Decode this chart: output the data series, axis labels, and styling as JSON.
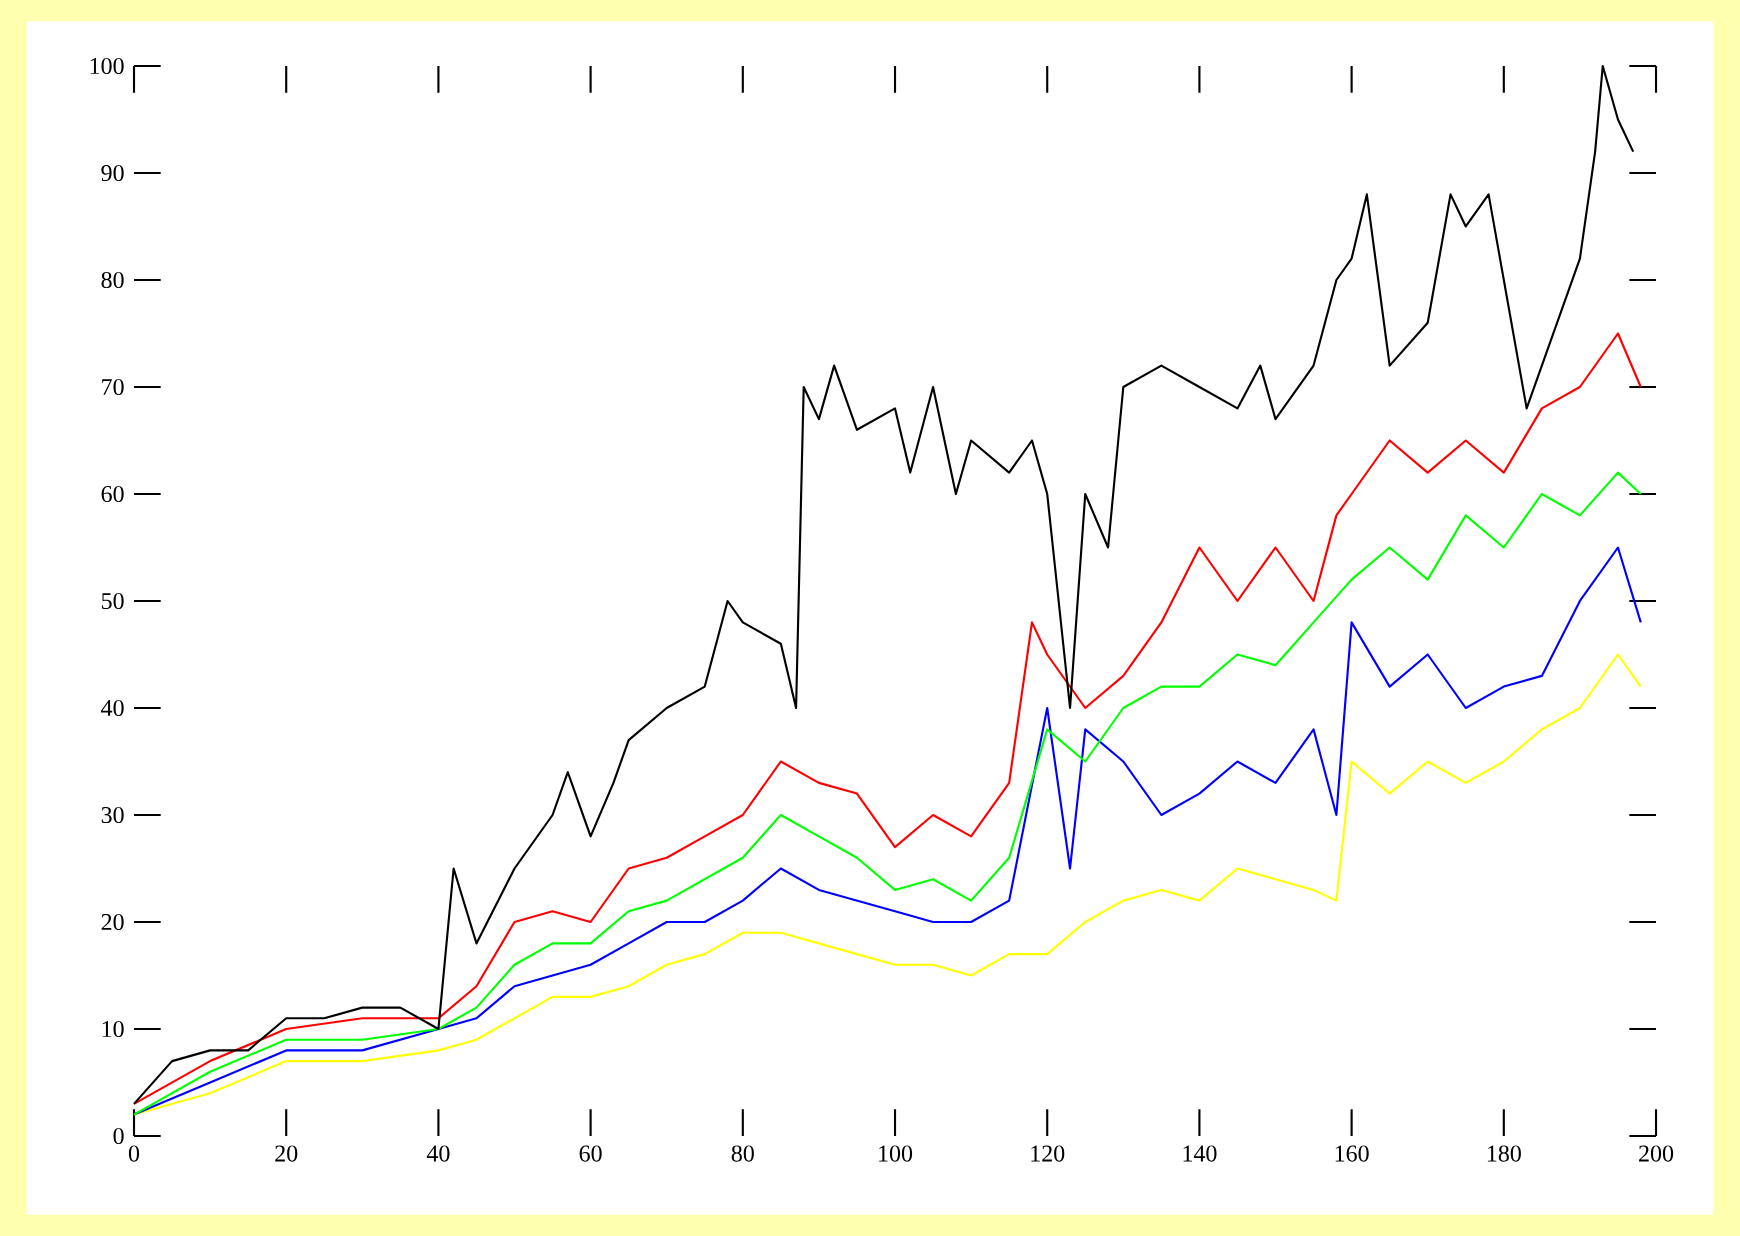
{
  "chart_data": {
    "type": "line",
    "xlim": [
      0,
      200
    ],
    "ylim": [
      0,
      100
    ],
    "xticks": [
      0,
      20,
      40,
      60,
      80,
      100,
      120,
      140,
      160,
      180,
      200
    ],
    "yticks": [
      0,
      10,
      20,
      30,
      40,
      50,
      60,
      70,
      80,
      90,
      100
    ],
    "grid": false,
    "marker": "none",
    "line_style": "solid",
    "series": [
      {
        "color": "#ffff00",
        "x": [
          0,
          10,
          20,
          30,
          40,
          45,
          50,
          55,
          60,
          65,
          70,
          75,
          80,
          85,
          90,
          95,
          100,
          105,
          110,
          115,
          120,
          125,
          130,
          135,
          140,
          145,
          150,
          155,
          158,
          160,
          165,
          170,
          175,
          180,
          185,
          190,
          195,
          198
        ],
        "values": [
          2,
          4,
          7,
          7,
          8,
          9,
          11,
          13,
          13,
          14,
          16,
          17,
          19,
          19,
          18,
          17,
          16,
          16,
          15,
          17,
          17,
          20,
          22,
          23,
          22,
          25,
          24,
          23,
          22,
          35,
          32,
          35,
          33,
          35,
          38,
          40,
          45,
          42
        ]
      },
      {
        "color": "#0000ff",
        "x": [
          0,
          10,
          20,
          30,
          40,
          45,
          50,
          55,
          60,
          65,
          70,
          75,
          80,
          85,
          90,
          95,
          100,
          105,
          110,
          115,
          120,
          123,
          125,
          130,
          135,
          140,
          145,
          150,
          155,
          158,
          160,
          165,
          170,
          175,
          180,
          185,
          190,
          195,
          198
        ],
        "values": [
          2,
          5,
          8,
          8,
          10,
          11,
          14,
          15,
          16,
          18,
          20,
          20,
          22,
          25,
          23,
          22,
          21,
          20,
          20,
          22,
          40,
          25,
          38,
          35,
          30,
          32,
          35,
          33,
          38,
          30,
          48,
          42,
          45,
          40,
          42,
          43,
          50,
          55,
          48
        ]
      },
      {
        "color": "#00ff00",
        "x": [
          0,
          10,
          20,
          30,
          40,
          45,
          50,
          55,
          60,
          65,
          70,
          75,
          80,
          85,
          90,
          95,
          100,
          105,
          110,
          115,
          120,
          125,
          130,
          135,
          140,
          145,
          150,
          155,
          160,
          165,
          170,
          175,
          180,
          185,
          190,
          195,
          198
        ],
        "values": [
          2,
          6,
          9,
          9,
          10,
          12,
          16,
          18,
          18,
          21,
          22,
          24,
          26,
          30,
          28,
          26,
          23,
          24,
          22,
          26,
          38,
          35,
          40,
          42,
          42,
          45,
          44,
          48,
          52,
          55,
          52,
          58,
          55,
          60,
          58,
          62,
          60
        ]
      },
      {
        "color": "#ff0000",
        "x": [
          0,
          10,
          20,
          30,
          40,
          45,
          50,
          55,
          60,
          65,
          70,
          75,
          80,
          85,
          90,
          95,
          100,
          105,
          110,
          115,
          118,
          120,
          125,
          130,
          135,
          140,
          145,
          150,
          155,
          158,
          160,
          165,
          170,
          175,
          180,
          185,
          190,
          195,
          198
        ],
        "values": [
          3,
          7,
          10,
          11,
          11,
          14,
          20,
          21,
          20,
          25,
          26,
          28,
          30,
          35,
          33,
          32,
          27,
          30,
          28,
          33,
          48,
          45,
          40,
          43,
          48,
          55,
          50,
          55,
          50,
          58,
          60,
          65,
          62,
          65,
          62,
          68,
          70,
          75,
          70
        ]
      },
      {
        "color": "#000000",
        "x": [
          0,
          5,
          10,
          15,
          20,
          25,
          30,
          35,
          40,
          42,
          45,
          50,
          55,
          57,
          60,
          63,
          65,
          70,
          75,
          78,
          80,
          85,
          87,
          88,
          90,
          92,
          95,
          100,
          102,
          105,
          108,
          110,
          115,
          118,
          120,
          123,
          125,
          128,
          130,
          135,
          140,
          145,
          148,
          150,
          155,
          158,
          160,
          162,
          165,
          170,
          173,
          175,
          178,
          180,
          183,
          185,
          190,
          192,
          193,
          195,
          197
        ],
        "values": [
          3,
          7,
          8,
          8,
          11,
          11,
          12,
          12,
          10,
          25,
          18,
          25,
          30,
          34,
          28,
          33,
          37,
          40,
          42,
          50,
          48,
          46,
          40,
          70,
          67,
          72,
          66,
          68,
          62,
          70,
          60,
          65,
          62,
          65,
          60,
          40,
          60,
          55,
          70,
          72,
          70,
          68,
          72,
          67,
          72,
          80,
          82,
          88,
          72,
          76,
          88,
          85,
          88,
          80,
          68,
          72,
          82,
          92,
          100,
          95,
          92
        ]
      }
    ]
  }
}
